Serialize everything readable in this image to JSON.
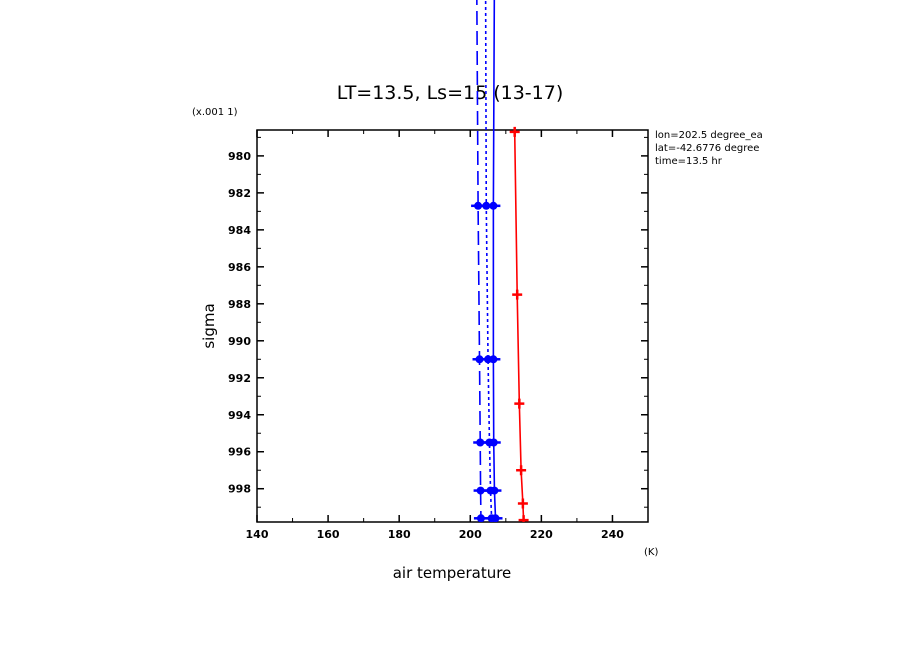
{
  "chart_data": {
    "type": "line",
    "title": "LT=13.5, Ls=15 (13-17)",
    "xlabel": "air temperature",
    "xunit": "(K)",
    "ylabel": "sigma",
    "yscale_note": "(x.001 1)",
    "xlim": [
      140,
      250
    ],
    "ylim": [
      999.8,
      978.6
    ],
    "y_reversed": true,
    "xticks": [
      140,
      160,
      180,
      200,
      220,
      240
    ],
    "yticks": [
      980,
      982,
      984,
      986,
      988,
      990,
      992,
      994,
      996,
      998
    ],
    "grid": false,
    "annotations": [
      "lon=202.5 degree_ea",
      "lat=-42.6776 degree",
      "time=13.5 hr"
    ],
    "series": [
      {
        "color": "#ff0000",
        "style": "solid",
        "marker": "plus",
        "points": [
          [
            212.5,
            978.7
          ],
          [
            213.2,
            987.5
          ],
          [
            213.8,
            993.4
          ],
          [
            214.3,
            997.0
          ],
          [
            214.8,
            998.8
          ],
          [
            215.0,
            999.7
          ]
        ]
      },
      {
        "color": "#0000ff",
        "style": "solid",
        "marker": "dot",
        "points": [
          [
            206.8,
            970.0
          ],
          [
            206.5,
            982.7
          ],
          [
            206.5,
            991.0
          ],
          [
            206.6,
            995.5
          ],
          [
            206.8,
            998.1
          ],
          [
            207.1,
            999.6
          ]
        ]
      },
      {
        "color": "#0000ff",
        "style": "dotted",
        "marker": "dot",
        "points": [
          [
            204.3,
            970.0
          ],
          [
            204.5,
            982.7
          ],
          [
            205.0,
            991.0
          ],
          [
            205.4,
            995.5
          ],
          [
            205.7,
            998.1
          ],
          [
            206.0,
            999.6
          ]
        ]
      },
      {
        "color": "#0000ff",
        "style": "dashed",
        "marker": "dot",
        "points": [
          [
            201.8,
            970.0
          ],
          [
            202.2,
            982.7
          ],
          [
            202.6,
            991.0
          ],
          [
            202.8,
            995.5
          ],
          [
            202.9,
            998.1
          ],
          [
            203.0,
            999.6
          ]
        ]
      }
    ]
  }
}
